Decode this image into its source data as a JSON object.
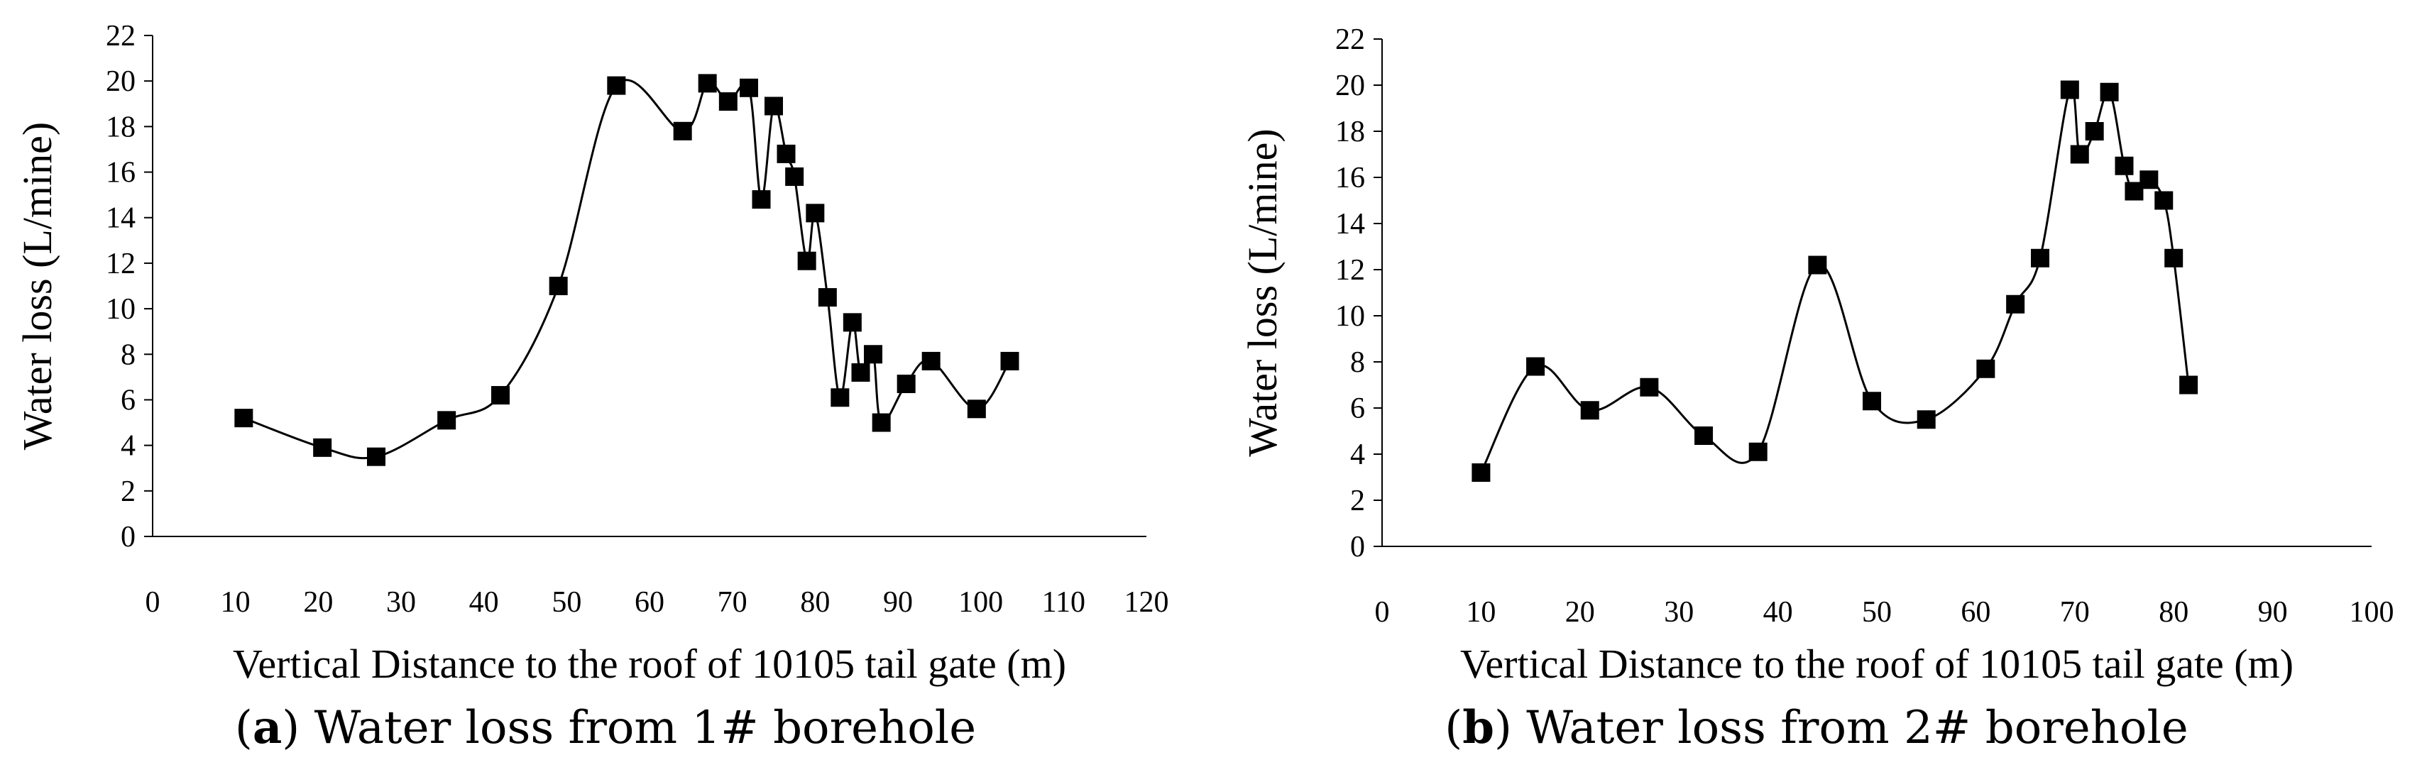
{
  "charts": [
    {
      "id": "a",
      "caption": {
        "label": "a",
        "text": "Water loss from 1# borehole"
      },
      "chart_data": {
        "type": "line",
        "title": "",
        "xlabel": "Vertical Distance to the roof of 10105 tail gate (m)",
        "ylabel": "Water loss (L/mine)",
        "xlim": [
          0,
          120
        ],
        "ylim": [
          0,
          22
        ],
        "xticks": [
          0,
          10,
          20,
          30,
          40,
          50,
          60,
          70,
          80,
          90,
          100,
          110,
          120
        ],
        "yticks": [
          0,
          2,
          4,
          6,
          8,
          10,
          12,
          14,
          16,
          18,
          20,
          22
        ],
        "grid": false,
        "marker": "square",
        "series": [
          {
            "name": "1# borehole",
            "x": [
              11,
              20.5,
              27,
              35.5,
              42,
              49,
              56,
              64,
              67,
              69.5,
              72,
              73.5,
              75,
              76.5,
              77.5,
              79,
              80,
              81.5,
              83,
              84.5,
              85.5,
              87,
              88,
              91,
              94,
              99.5,
              103.5
            ],
            "y": [
              5.2,
              3.9,
              3.5,
              5.1,
              6.2,
              11,
              19.8,
              17.8,
              19.9,
              19.1,
              19.7,
              14.8,
              18.9,
              16.8,
              15.8,
              12.1,
              14.2,
              10.5,
              6.1,
              9.4,
              7.2,
              8.0,
              5.0,
              6.7,
              7.7,
              5.6,
              7.7
            ]
          }
        ]
      }
    },
    {
      "id": "b",
      "caption": {
        "label": "b",
        "text": "Water loss from 2# borehole"
      },
      "chart_data": {
        "type": "line",
        "title": "",
        "xlabel": "Vertical Distance to the roof of 10105 tail gate (m)",
        "ylabel": "Water loss (L/mine)",
        "xlim": [
          0,
          100
        ],
        "ylim": [
          0,
          22
        ],
        "xticks": [
          0,
          10,
          20,
          30,
          40,
          50,
          60,
          70,
          80,
          90,
          100
        ],
        "yticks": [
          0,
          2,
          4,
          6,
          8,
          10,
          12,
          14,
          16,
          18,
          20,
          22
        ],
        "grid": false,
        "marker": "square",
        "series": [
          {
            "name": "2# borehole",
            "x": [
              10,
              15.5,
              21,
              27,
              32.5,
              38,
              44,
              49.5,
              55,
              61,
              64,
              66.5,
              69.5,
              70.5,
              72,
              73.5,
              75,
              76,
              77.5,
              79,
              80,
              81.5
            ],
            "y": [
              3.2,
              7.8,
              5.9,
              6.9,
              4.8,
              4.1,
              12.2,
              6.3,
              5.5,
              7.7,
              10.5,
              12.5,
              19.8,
              17.0,
              18.0,
              19.7,
              16.5,
              15.4,
              15.9,
              15.0,
              12.5,
              7.0
            ]
          }
        ]
      }
    }
  ]
}
